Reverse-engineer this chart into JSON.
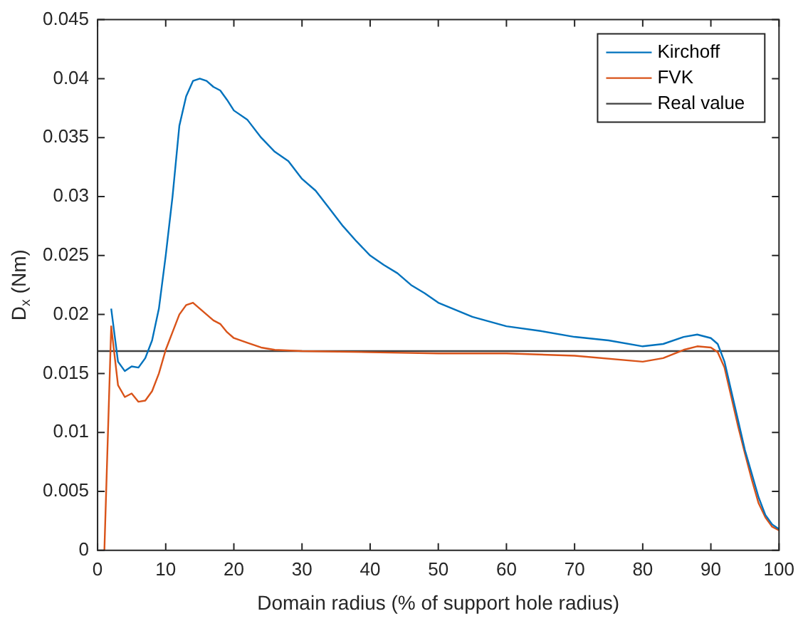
{
  "chart_data": {
    "type": "line",
    "xlabel": "Domain radius (% of support hole radius)",
    "ylabel": "D$_{x}$ (Nm)",
    "xlim": [
      0,
      100
    ],
    "xticks": [
      0,
      10,
      20,
      30,
      40,
      50,
      60,
      70,
      80,
      90,
      100
    ],
    "ylim": [
      0,
      0.045
    ],
    "yticks": [
      0,
      0.005,
      0.01,
      0.015,
      0.02,
      0.025,
      0.03,
      0.035,
      0.04,
      0.045
    ],
    "grid": false,
    "legend": "top right",
    "marker": "none",
    "line_style": "solid",
    "series": [
      {
        "name": "Kirchoff",
        "color": "#0072bd",
        "x": [
          2,
          3,
          4,
          5,
          6,
          7,
          8,
          9,
          10,
          11,
          12,
          13,
          14,
          15,
          16,
          17,
          18,
          19,
          20,
          22,
          24,
          26,
          28,
          30,
          32,
          34,
          36,
          38,
          40,
          42,
          44,
          46,
          48,
          50,
          55,
          60,
          65,
          70,
          75,
          80,
          83,
          86,
          88,
          90,
          91,
          92,
          93,
          94,
          95,
          96,
          97,
          98,
          99,
          100
        ],
        "values": [
          0.0205,
          0.016,
          0.0152,
          0.0156,
          0.0155,
          0.0163,
          0.0178,
          0.0205,
          0.025,
          0.03,
          0.036,
          0.0385,
          0.0398,
          0.04,
          0.0398,
          0.0393,
          0.039,
          0.0382,
          0.0373,
          0.0365,
          0.035,
          0.0338,
          0.033,
          0.0315,
          0.0305,
          0.029,
          0.0275,
          0.0262,
          0.025,
          0.0242,
          0.0235,
          0.0225,
          0.0218,
          0.021,
          0.0198,
          0.019,
          0.0186,
          0.0181,
          0.0178,
          0.0173,
          0.0175,
          0.0181,
          0.0183,
          0.018,
          0.0175,
          0.016,
          0.0135,
          0.011,
          0.0085,
          0.0065,
          0.0045,
          0.003,
          0.0022,
          0.0018
        ]
      },
      {
        "name": "FVK",
        "color": "#d95319",
        "x": [
          1,
          2,
          3,
          4,
          5,
          6,
          7,
          8,
          9,
          10,
          11,
          12,
          13,
          14,
          15,
          16,
          17,
          18,
          19,
          20,
          22,
          24,
          26,
          30,
          40,
          50,
          60,
          70,
          80,
          83,
          86,
          88,
          90,
          91,
          92,
          93,
          94,
          95,
          96,
          97,
          98,
          99,
          100
        ],
        "values": [
          0,
          0.019,
          0.014,
          0.013,
          0.0133,
          0.0126,
          0.0127,
          0.0135,
          0.015,
          0.017,
          0.0185,
          0.02,
          0.0208,
          0.021,
          0.0205,
          0.02,
          0.0195,
          0.0192,
          0.0185,
          0.018,
          0.0176,
          0.0172,
          0.017,
          0.0169,
          0.0168,
          0.0167,
          0.0167,
          0.0165,
          0.016,
          0.0163,
          0.017,
          0.0173,
          0.0172,
          0.0168,
          0.0155,
          0.013,
          0.0105,
          0.0082,
          0.006,
          0.004,
          0.0028,
          0.002,
          0.0017
        ]
      },
      {
        "name": "Real value",
        "color": "#404040",
        "x": [
          0,
          100
        ],
        "values": [
          0.0169,
          0.0169
        ]
      }
    ]
  }
}
